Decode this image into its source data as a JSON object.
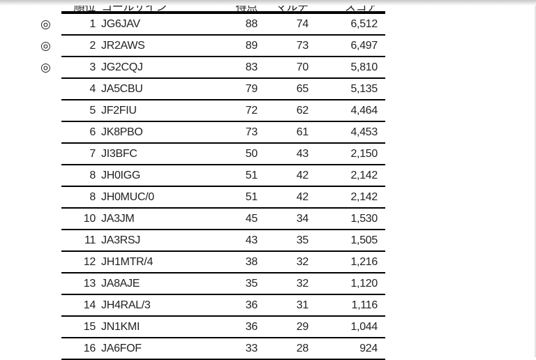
{
  "headers": {
    "rank": "順位",
    "call": "コールサイン",
    "points": "得点",
    "multi": "マルチ",
    "score": "スコア"
  },
  "mark_symbol": "◎",
  "rows": [
    {
      "mark": "◎",
      "rank": "1",
      "call": "JG6JAV",
      "points": "88",
      "multi": "74",
      "score": "6,512"
    },
    {
      "mark": "◎",
      "rank": "2",
      "call": "JR2AWS",
      "points": "89",
      "multi": "73",
      "score": "6,497"
    },
    {
      "mark": "◎",
      "rank": "3",
      "call": "JG2CQJ",
      "points": "83",
      "multi": "70",
      "score": "5,810"
    },
    {
      "mark": "",
      "rank": "4",
      "call": "JA5CBU",
      "points": "79",
      "multi": "65",
      "score": "5,135"
    },
    {
      "mark": "",
      "rank": "5",
      "call": "JF2FIU",
      "points": "72",
      "multi": "62",
      "score": "4,464"
    },
    {
      "mark": "",
      "rank": "6",
      "call": "JK8PBO",
      "points": "73",
      "multi": "61",
      "score": "4,453"
    },
    {
      "mark": "",
      "rank": "7",
      "call": "JI3BFC",
      "points": "50",
      "multi": "43",
      "score": "2,150"
    },
    {
      "mark": "",
      "rank": "8",
      "call": "JH0IGG",
      "points": "51",
      "multi": "42",
      "score": "2,142"
    },
    {
      "mark": "",
      "rank": "8",
      "call": "JH0MUC/0",
      "points": "51",
      "multi": "42",
      "score": "2,142"
    },
    {
      "mark": "",
      "rank": "10",
      "call": "JA3JM",
      "points": "45",
      "multi": "34",
      "score": "1,530"
    },
    {
      "mark": "",
      "rank": "11",
      "call": "JA3RSJ",
      "points": "43",
      "multi": "35",
      "score": "1,505"
    },
    {
      "mark": "",
      "rank": "12",
      "call": "JH1MTR/4",
      "points": "38",
      "multi": "32",
      "score": "1,216"
    },
    {
      "mark": "",
      "rank": "13",
      "call": "JA8AJE",
      "points": "35",
      "multi": "32",
      "score": "1,120"
    },
    {
      "mark": "",
      "rank": "14",
      "call": "JH4RAL/3",
      "points": "36",
      "multi": "31",
      "score": "1,116"
    },
    {
      "mark": "",
      "rank": "15",
      "call": "JN1KMI",
      "points": "36",
      "multi": "29",
      "score": "1,044"
    },
    {
      "mark": "",
      "rank": "16",
      "call": "JA6FOF",
      "points": "33",
      "multi": "28",
      "score": "924"
    }
  ]
}
